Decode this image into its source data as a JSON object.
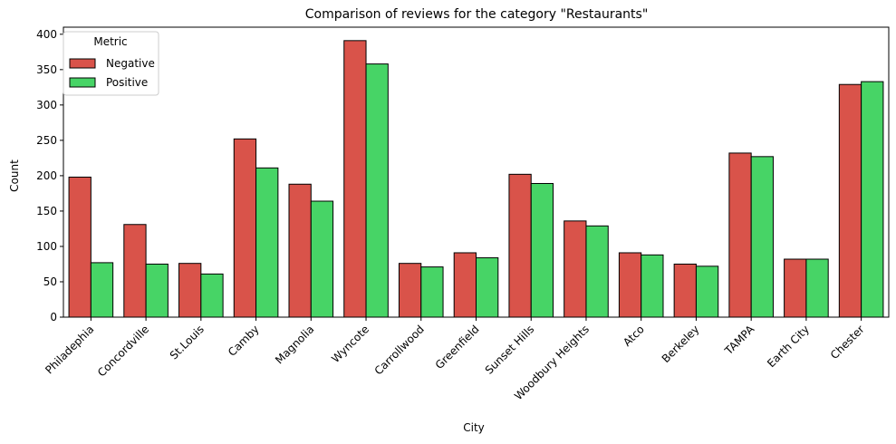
{
  "chart_data": {
    "type": "bar",
    "title": "Comparison of reviews for the category \"Restaurants\"",
    "xlabel": "City",
    "ylabel": "Count",
    "ylim": [
      0,
      410
    ],
    "yticks": [
      0,
      50,
      100,
      150,
      200,
      250,
      300,
      350,
      400
    ],
    "categories": [
      "Philadephia",
      "Concordville",
      "St.Louis",
      "Camby",
      "Magnolia",
      "Wyncote",
      "Carrollwood",
      "Greenfield",
      "Sunset Hills",
      "Woodbury Heights",
      "Atco",
      "Berkeley",
      "TAMPA",
      "Earth City",
      "Chester"
    ],
    "series": [
      {
        "name": "Negative",
        "color": "#d9534a",
        "values": [
          198,
          131,
          76,
          252,
          188,
          391,
          76,
          91,
          202,
          136,
          91,
          75,
          232,
          82,
          329
        ]
      },
      {
        "name": "Positive",
        "color": "#47d466",
        "values": [
          77,
          75,
          61,
          211,
          164,
          358,
          71,
          84,
          189,
          129,
          88,
          72,
          227,
          82,
          333
        ]
      }
    ],
    "legend": {
      "title": "Metric",
      "placement": "top-left"
    },
    "grid": false
  }
}
